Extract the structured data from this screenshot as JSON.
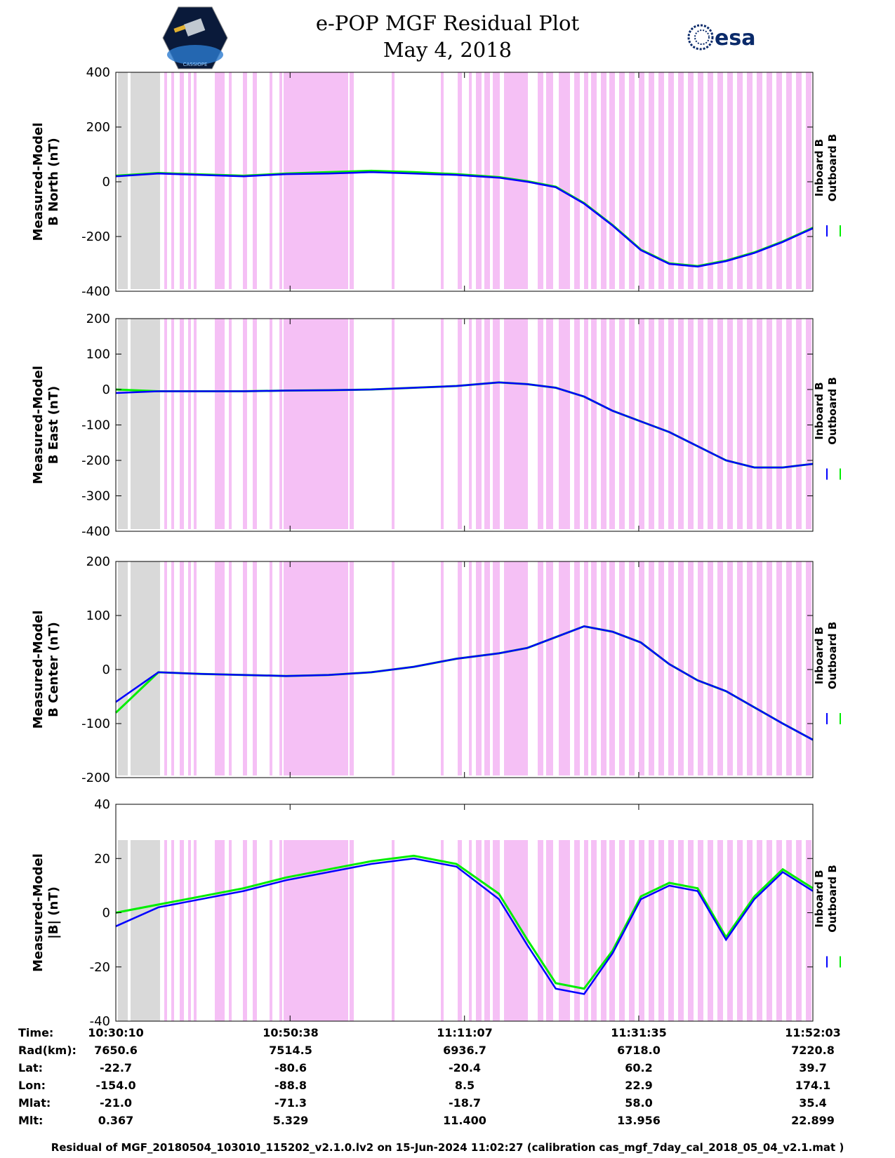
{
  "header": {
    "title_line1": "e-POP MGF Residual Plot",
    "title_line2": "May 4, 2018",
    "left_logo": "cassiope-mission-logo",
    "left_logo_text": "CASSIOPE",
    "right_logo_text": "esa"
  },
  "colors": {
    "inboard": "#0000ff",
    "outboard": "#00ee00",
    "highlight_pink": "#f5c0f5",
    "highlight_gray": "#d9d9d9"
  },
  "legend": {
    "inboard": "Inboard B",
    "outboard": "Outboard B"
  },
  "chart_data": [
    {
      "type": "line",
      "ylabel_line1": "Measured-Model",
      "ylabel_line2": "B North (nT)",
      "ylim": [
        -400,
        400
      ],
      "yticks": [
        400,
        200,
        0,
        -200,
        -400
      ],
      "xlim": [
        0,
        4912
      ],
      "series": [
        {
          "name": "Inboard B",
          "x": [
            0,
            300,
            600,
            900,
            1200,
            1500,
            1800,
            2100,
            2400,
            2700,
            2900,
            3100,
            3300,
            3500,
            3700,
            3900,
            4100,
            4300,
            4500,
            4700,
            4912
          ],
          "y": [
            20,
            30,
            25,
            20,
            28,
            30,
            35,
            30,
            25,
            15,
            0,
            -20,
            -80,
            -160,
            -250,
            -300,
            -310,
            -290,
            -260,
            -220,
            -170
          ]
        },
        {
          "name": "Outboard B",
          "x": [
            0,
            300,
            600,
            900,
            1200,
            1500,
            1800,
            2100,
            2400,
            2700,
            2900,
            3100,
            3300,
            3500,
            3700,
            3900,
            4100,
            4300,
            4500,
            4700,
            4912
          ],
          "y": [
            22,
            32,
            27,
            22,
            30,
            35,
            40,
            35,
            28,
            17,
            2,
            -18,
            -78,
            -158,
            -248,
            -298,
            -308,
            -288,
            -258,
            -218,
            -168
          ]
        }
      ]
    },
    {
      "type": "line",
      "ylabel_line1": "Measured-Model",
      "ylabel_line2": "B East (nT)",
      "ylim": [
        -400,
        200
      ],
      "yticks": [
        200,
        100,
        0,
        -100,
        -200,
        -300,
        -400
      ],
      "xlim": [
        0,
        4912
      ],
      "series": [
        {
          "name": "Inboard B",
          "x": [
            0,
            300,
            600,
            900,
            1200,
            1500,
            1800,
            2100,
            2400,
            2700,
            2900,
            3100,
            3300,
            3500,
            3700,
            3900,
            4100,
            4300,
            4500,
            4700,
            4912
          ],
          "y": [
            -10,
            -5,
            -5,
            -5,
            -3,
            -2,
            0,
            5,
            10,
            20,
            15,
            5,
            -20,
            -60,
            -90,
            -120,
            -160,
            -200,
            -220,
            -220,
            -210
          ]
        },
        {
          "name": "Outboard B",
          "x": [
            0,
            300,
            600,
            900,
            1200,
            1500,
            1800,
            2100,
            2400,
            2700,
            2900,
            3100,
            3300,
            3500,
            3700,
            3900,
            4100,
            4300,
            4500,
            4700,
            4912
          ],
          "y": [
            0,
            -5,
            -5,
            -5,
            -3,
            -2,
            0,
            5,
            10,
            20,
            15,
            5,
            -20,
            -60,
            -90,
            -120,
            -160,
            -200,
            -220,
            -220,
            -210
          ]
        }
      ]
    },
    {
      "type": "line",
      "ylabel_line1": "Measured-Model",
      "ylabel_line2": "B Center (nT)",
      "ylim": [
        -200,
        200
      ],
      "yticks": [
        200,
        100,
        0,
        -100,
        -200
      ],
      "xlim": [
        0,
        4912
      ],
      "series": [
        {
          "name": "Inboard B",
          "x": [
            0,
            300,
            600,
            900,
            1200,
            1500,
            1800,
            2100,
            2400,
            2700,
            2900,
            3100,
            3300,
            3500,
            3700,
            3900,
            4100,
            4300,
            4500,
            4700,
            4912
          ],
          "y": [
            -60,
            -5,
            -8,
            -10,
            -12,
            -10,
            -5,
            5,
            20,
            30,
            40,
            60,
            80,
            70,
            50,
            10,
            -20,
            -40,
            -70,
            -100,
            -130
          ]
        },
        {
          "name": "Outboard B",
          "x": [
            0,
            300,
            600,
            900,
            1200,
            1500,
            1800,
            2100,
            2400,
            2700,
            2900,
            3100,
            3300,
            3500,
            3700,
            3900,
            4100,
            4300,
            4500,
            4700,
            4912
          ],
          "y": [
            -80,
            -5,
            -8,
            -10,
            -12,
            -10,
            -5,
            5,
            20,
            30,
            40,
            60,
            80,
            70,
            50,
            10,
            -20,
            -40,
            -70,
            -100,
            -130
          ]
        }
      ]
    },
    {
      "type": "line",
      "ylabel_line1": "Measured-Model",
      "ylabel_line2": "|B| (nT)",
      "ylim": [
        -40,
        40
      ],
      "yticks": [
        40,
        20,
        0,
        -20,
        -40
      ],
      "xlim": [
        0,
        4912
      ],
      "series": [
        {
          "name": "Inboard B",
          "x": [
            0,
            300,
            600,
            900,
            1200,
            1500,
            1800,
            2100,
            2400,
            2700,
            2900,
            3100,
            3300,
            3500,
            3700,
            3900,
            4100,
            4300,
            4500,
            4700,
            4912
          ],
          "y": [
            -5,
            2,
            5,
            8,
            12,
            15,
            18,
            20,
            17,
            5,
            -12,
            -28,
            -30,
            -15,
            5,
            10,
            8,
            -10,
            5,
            15,
            8
          ]
        },
        {
          "name": "Outboard B",
          "x": [
            0,
            300,
            600,
            900,
            1200,
            1500,
            1800,
            2100,
            2400,
            2700,
            2900,
            3100,
            3300,
            3500,
            3700,
            3900,
            4100,
            4300,
            4500,
            4700,
            4912
          ],
          "y": [
            0,
            3,
            6,
            9,
            13,
            16,
            19,
            21,
            18,
            7,
            -10,
            -26,
            -28,
            -14,
            6,
            11,
            9,
            -9,
            6,
            16,
            9
          ]
        }
      ]
    }
  ],
  "info_table": {
    "labels": [
      "Time:",
      "Rad(km):",
      "Lat:",
      "Lon:",
      "Mlat:",
      "Mlt:"
    ],
    "columns": [
      {
        "time": "10:30:10",
        "rad": "7650.6",
        "lat": "-22.7",
        "lon": "-154.0",
        "mlat": "-21.0",
        "mlt": "0.367"
      },
      {
        "time": "10:50:38",
        "rad": "7514.5",
        "lat": "-80.6",
        "lon": "-88.8",
        "mlat": "-71.3",
        "mlt": "5.329"
      },
      {
        "time": "11:11:07",
        "rad": "6936.7",
        "lat": "-20.4",
        "lon": "8.5",
        "mlat": "-18.7",
        "mlt": "11.400"
      },
      {
        "time": "11:31:35",
        "rad": "6718.0",
        "lat": "60.2",
        "lon": "22.9",
        "mlat": "58.0",
        "mlt": "13.956"
      },
      {
        "time": "11:52:03",
        "rad": "7220.8",
        "lat": "39.7",
        "lon": "174.1",
        "mlat": "35.4",
        "mlt": "22.899"
      }
    ]
  },
  "footer": "Residual of MGF_20180504_103010_115202_v2.1.0.lv2 on 15-Jun-2024 11:02:27 (calibration cas_mgf_7day_cal_2018_05_04_v2.1.mat )"
}
